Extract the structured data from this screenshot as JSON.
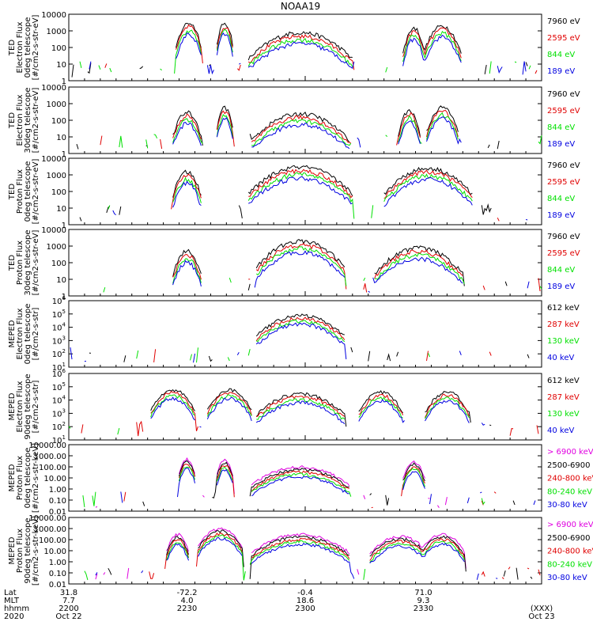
{
  "title": "NOAA19",
  "colors": {
    "black": "#000000",
    "red": "#e00000",
    "green": "#00e000",
    "blue": "#0000e0",
    "magenta": "#e000e0",
    "axis": "#000000"
  },
  "chart_data": [
    {
      "id": "ted-e-0",
      "type": "line",
      "ylabel": [
        "TED",
        "Electron Flux",
        "0deg telescope",
        "[#/cm2-s-str-eV]"
      ],
      "yscale": "log",
      "ylim": [
        1,
        10000
      ],
      "yticks": [
        "1",
        "10",
        "100",
        "1000",
        "10000"
      ],
      "series": [
        {
          "name": "7960 eV",
          "color": "black"
        },
        {
          "name": "2595 eV",
          "color": "red"
        },
        {
          "name": "844 eV",
          "color": "green"
        },
        {
          "name": "189 eV",
          "color": "blue"
        }
      ],
      "features": [
        {
          "center": 0.254,
          "width": 0.018,
          "peak": 3000
        },
        {
          "center": 0.33,
          "width": 0.012,
          "peak": 3000
        },
        {
          "center": 0.49,
          "width": 0.07,
          "peak": 800
        },
        {
          "center": 0.73,
          "width": 0.015,
          "peak": 1500
        },
        {
          "center": 0.79,
          "width": 0.025,
          "peak": 2000
        }
      ]
    },
    {
      "id": "ted-e-30",
      "type": "line",
      "ylabel": [
        "TED",
        "Electron Flux",
        "30deg telescope",
        "[#/cm2-s-str-eV]"
      ],
      "yscale": "log",
      "ylim": [
        1,
        10000
      ],
      "yticks": [
        "1",
        "10",
        "100",
        "1000",
        "10000"
      ],
      "series": [
        {
          "name": "7960 eV",
          "color": "black"
        },
        {
          "name": "2595 eV",
          "color": "red"
        },
        {
          "name": "844 eV",
          "color": "green"
        },
        {
          "name": "189 eV",
          "color": "blue"
        }
      ],
      "features": [
        {
          "center": 0.25,
          "width": 0.02,
          "peak": 300
        },
        {
          "center": 0.33,
          "width": 0.012,
          "peak": 600
        },
        {
          "center": 0.49,
          "width": 0.065,
          "peak": 250
        },
        {
          "center": 0.72,
          "width": 0.015,
          "peak": 400
        },
        {
          "center": 0.79,
          "width": 0.022,
          "peak": 600
        }
      ]
    },
    {
      "id": "ted-p-0",
      "type": "line",
      "ylabel": [
        "TED",
        "Proton Flux",
        "0deg telescope",
        "[#/cm2-s-str-eV]"
      ],
      "yscale": "log",
      "ylim": [
        1,
        10000
      ],
      "yticks": [
        "1",
        "10",
        "100",
        "1000",
        "10000"
      ],
      "series": [
        {
          "name": "7960 eV",
          "color": "black"
        },
        {
          "name": "2595 eV",
          "color": "red"
        },
        {
          "name": "844 eV",
          "color": "green"
        },
        {
          "name": "189 eV",
          "color": "blue"
        }
      ],
      "features": [
        {
          "center": 0.49,
          "width": 0.07,
          "peak": 3000
        },
        {
          "center": 0.76,
          "width": 0.06,
          "peak": 2500
        },
        {
          "center": 0.25,
          "width": 0.02,
          "peak": 1500
        }
      ]
    },
    {
      "id": "ted-p-30",
      "type": "line",
      "ylabel": [
        "TED",
        "Proton Flux",
        "30deg telescope",
        "[#/cm2-s-str-eV]"
      ],
      "yscale": "log",
      "ylim": [
        1,
        10000
      ],
      "yticks": [
        "1",
        "10",
        "100",
        "1000",
        "10000"
      ],
      "series": [
        {
          "name": "7960 eV",
          "color": "black"
        },
        {
          "name": "2595 eV",
          "color": "red"
        },
        {
          "name": "844 eV",
          "color": "green"
        },
        {
          "name": "189 eV",
          "color": "blue"
        }
      ],
      "features": [
        {
          "center": 0.49,
          "width": 0.06,
          "peak": 2000
        },
        {
          "center": 0.74,
          "width": 0.06,
          "peak": 800
        },
        {
          "center": 0.25,
          "width": 0.02,
          "peak": 500
        }
      ]
    },
    {
      "id": "meped-e-0",
      "type": "line",
      "ylabel": [
        "MEPED",
        "Electron Flux",
        "0deg telescope",
        "[#/cm2-s-str]"
      ],
      "yscale": "log",
      "ylim": [
        10,
        1000000
      ],
      "yticks": [
        "10^1",
        "10^2",
        "10^3",
        "10^4",
        "10^5",
        "10^6"
      ],
      "series": [
        {
          "name": "612 keV",
          "color": "black"
        },
        {
          "name": "287 keV",
          "color": "red"
        },
        {
          "name": "130 keV",
          "color": "green"
        },
        {
          "name": "40 keV",
          "color": "blue"
        }
      ],
      "features": [
        {
          "center": 0.49,
          "width": 0.06,
          "peak": 80000
        }
      ]
    },
    {
      "id": "meped-e-90",
      "type": "line",
      "ylabel": [
        "MEPED",
        "Electron Flux",
        "90deg telescope",
        "[#/cm2-s-str]"
      ],
      "yscale": "log",
      "ylim": [
        10,
        1000000
      ],
      "yticks": [
        "10^1",
        "10^2",
        "10^3",
        "10^4",
        "10^5",
        "10^6"
      ],
      "series": [
        {
          "name": "612 keV",
          "color": "black"
        },
        {
          "name": "287 keV",
          "color": "red"
        },
        {
          "name": "130 keV",
          "color": "green"
        },
        {
          "name": "40 keV",
          "color": "blue"
        }
      ],
      "features": [
        {
          "center": 0.22,
          "width": 0.03,
          "peak": 60000
        },
        {
          "center": 0.34,
          "width": 0.03,
          "peak": 60000
        },
        {
          "center": 0.49,
          "width": 0.06,
          "peak": 30000
        },
        {
          "center": 0.66,
          "width": 0.03,
          "peak": 40000
        },
        {
          "center": 0.8,
          "width": 0.03,
          "peak": 40000
        }
      ]
    },
    {
      "id": "meped-p-0",
      "type": "line",
      "ylabel": [
        "MEPED",
        "Proton Flux",
        "0deg telescope",
        "[#/cm2-s-str-keV]"
      ],
      "yscale": "log",
      "ylim": [
        0.01,
        10000
      ],
      "yticks": [
        "0.01",
        "0.10",
        "1.00",
        "10.00",
        "100.00",
        "1000.00",
        "10000.00"
      ],
      "series": [
        {
          "name": "> 6900 keV",
          "color": "magenta"
        },
        {
          "name": "2500-6900",
          "color": "black"
        },
        {
          "name": "240-800 keV",
          "color": "red"
        },
        {
          "name": "80-240 keV",
          "color": "green"
        },
        {
          "name": "30-80 keV",
          "color": "blue"
        }
      ],
      "features": [
        {
          "center": 0.49,
          "width": 0.065,
          "peak": 100
        },
        {
          "center": 0.25,
          "width": 0.012,
          "peak": 500
        },
        {
          "center": 0.33,
          "width": 0.012,
          "peak": 400
        },
        {
          "center": 0.73,
          "width": 0.015,
          "peak": 300
        }
      ]
    },
    {
      "id": "meped-p-90",
      "type": "line",
      "ylabel": [
        "MEPED",
        "Proton Flux",
        "90deg telescope",
        "[#/cm2-s-str-keV]"
      ],
      "yscale": "log",
      "ylim": [
        0.01,
        10000
      ],
      "yticks": [
        "0.01",
        "0.10",
        "1.00",
        "10.00",
        "100.00",
        "1000.00",
        "10000.00"
      ],
      "series": [
        {
          "name": "> 6900 keV",
          "color": "magenta"
        },
        {
          "name": "2500-6900",
          "color": "black"
        },
        {
          "name": "240-800 keV",
          "color": "red"
        },
        {
          "name": "80-240 keV",
          "color": "green"
        },
        {
          "name": "30-80 keV",
          "color": "blue"
        }
      ],
      "features": [
        {
          "center": 0.49,
          "width": 0.065,
          "peak": 300
        },
        {
          "center": 0.32,
          "width": 0.03,
          "peak": 1000
        },
        {
          "center": 0.23,
          "width": 0.015,
          "peak": 300
        },
        {
          "center": 0.7,
          "width": 0.04,
          "peak": 200
        },
        {
          "center": 0.79,
          "width": 0.03,
          "peak": 300
        }
      ]
    }
  ],
  "xaxis": {
    "row_labels": [
      "Lat",
      "MLT",
      "hhmm",
      "2020"
    ],
    "ticks": [
      {
        "frac": 0.0,
        "lat": "31.8",
        "mlt": "7.7",
        "hhmm": "2200",
        "date": "Oct 22"
      },
      {
        "frac": 0.25,
        "lat": "-72.2",
        "mlt": "4.0",
        "hhmm": "2230",
        "date": ""
      },
      {
        "frac": 0.5,
        "lat": "-0.4",
        "mlt": "18.6",
        "hhmm": "2300",
        "date": ""
      },
      {
        "frac": 0.75,
        "lat": "71.0",
        "mlt": "9.3",
        "hhmm": "2330",
        "date": ""
      },
      {
        "frac": 1.0,
        "lat": "",
        "mlt": "",
        "hhmm": "(XXX)",
        "date": "Oct 23"
      }
    ]
  }
}
